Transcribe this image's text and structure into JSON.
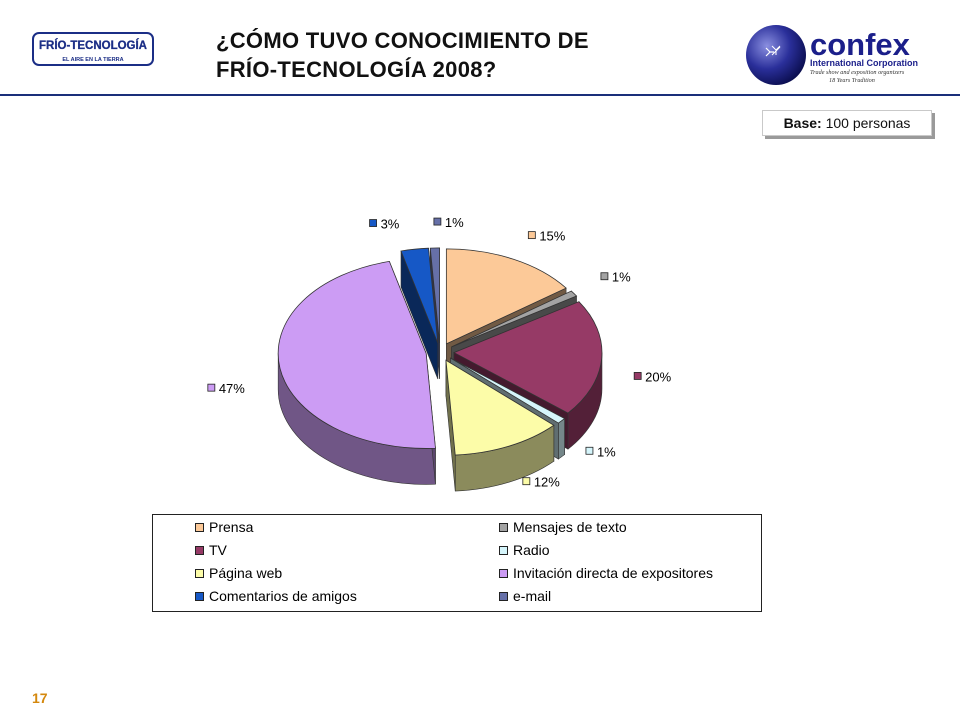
{
  "header": {
    "title_line1": "¿CÓMO TUVO CONOCIMIENTO DE",
    "title_line2": "FRÍO-TECNOLOGÍA 2008?",
    "left_logo": {
      "line1": "FRÍO-TECNOLOGÍA",
      "line2": "EL AIRE EN LA TIERRA"
    },
    "right_logo": {
      "brand": "confex",
      "line1": "International Corporation",
      "line2": "Trade show and exposition organizers",
      "line3": "18 Years Tradition"
    }
  },
  "base": {
    "label": "Base:",
    "value": "100 personas"
  },
  "chart_data": {
    "type": "pie",
    "title": "",
    "slices": [
      {
        "name": "Prensa",
        "value": 15,
        "label": "15%",
        "color": "#fcc998"
      },
      {
        "name": "Mensajes de texto",
        "value": 1,
        "label": "1%",
        "color": "#a3a3a3"
      },
      {
        "name": "TV",
        "value": 20,
        "label": "20%",
        "color": "#963a66"
      },
      {
        "name": "Radio",
        "value": 1,
        "label": "1%",
        "color": "#d5f5fb"
      },
      {
        "name": "Página web",
        "value": 12,
        "label": "12%",
        "color": "#fcfca8"
      },
      {
        "name": "Invitación directa de expositores",
        "value": 47,
        "label": "47%",
        "color": "#cc9cf4"
      },
      {
        "name": "Comentarios de amigos",
        "value": 3,
        "label": "3%",
        "color": "#1658c6"
      },
      {
        "name": "e-mail",
        "value": 1,
        "label": "1%",
        "color": "#6670a8"
      }
    ],
    "legend": "bottom"
  },
  "page_number": "17"
}
